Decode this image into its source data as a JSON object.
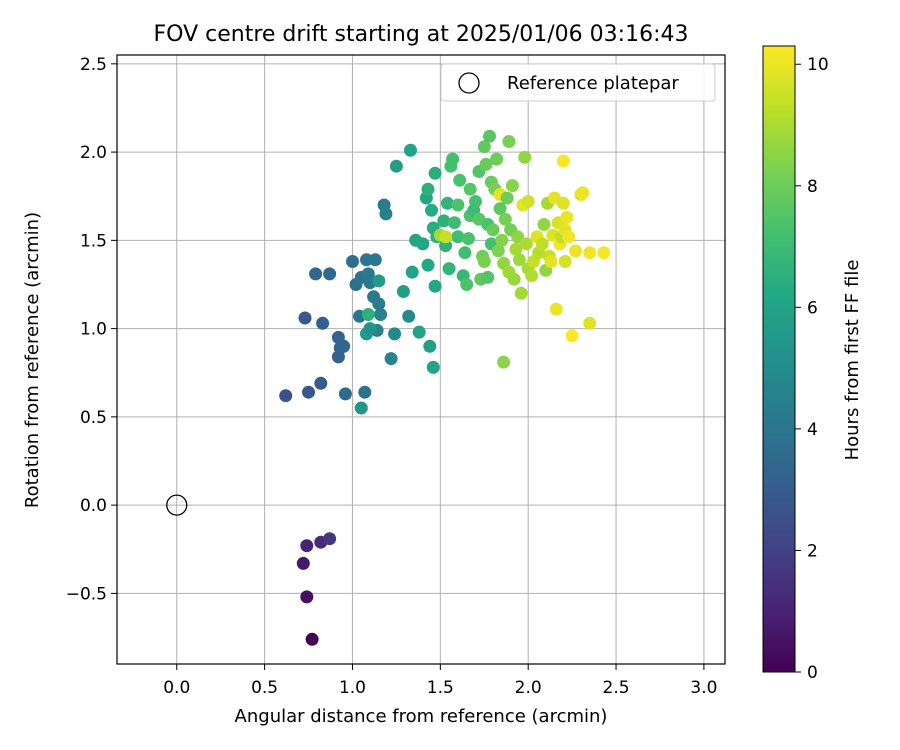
{
  "chart_data": {
    "type": "scatter",
    "title": "FOV centre drift starting at 2025/01/06 03:16:43",
    "xlabel": "Angular distance from reference (arcmin)",
    "ylabel": "Rotation from reference (arcmin)",
    "xlim": [
      -0.34,
      3.12
    ],
    "ylim": [
      -0.9,
      2.55
    ],
    "xticks": [
      0.0,
      0.5,
      1.0,
      1.5,
      2.0,
      2.5,
      3.0
    ],
    "xtick_labels": [
      "0.0",
      "0.5",
      "1.0",
      "1.5",
      "2.0",
      "2.5",
      "3.0"
    ],
    "yticks": [
      -0.5,
      0.0,
      0.5,
      1.0,
      1.5,
      2.0,
      2.5
    ],
    "ytick_labels": [
      "−0.5",
      "0.0",
      "0.5",
      "1.0",
      "1.5",
      "2.0",
      "2.5"
    ],
    "grid": true,
    "legend": {
      "label": "Reference platepar",
      "position": "top-right"
    },
    "reference_point": {
      "x": 0.0,
      "y": 0.0
    },
    "colorbar": {
      "label": "Hours from first FF file",
      "colormap": "viridis",
      "range": [
        0,
        10.3
      ],
      "ticks": [
        0,
        2,
        4,
        6,
        8,
        10
      ],
      "tick_labels": [
        "0",
        "2",
        "4",
        "6",
        "8",
        "10"
      ]
    },
    "points": [
      [
        0.77,
        -0.76,
        0.1
      ],
      [
        0.74,
        -0.52,
        0.4
      ],
      [
        0.72,
        -0.33,
        0.7
      ],
      [
        0.74,
        -0.23,
        1.0
      ],
      [
        0.82,
        -0.21,
        1.3
      ],
      [
        0.87,
        -0.19,
        1.6
      ],
      [
        0.62,
        0.62,
        2.5
      ],
      [
        0.75,
        0.64,
        2.8
      ],
      [
        0.82,
        0.69,
        3.0
      ],
      [
        0.73,
        1.06,
        2.9
      ],
      [
        0.83,
        1.03,
        3.1
      ],
      [
        0.92,
        0.84,
        3.2
      ],
      [
        0.93,
        0.89,
        3.3
      ],
      [
        0.95,
        0.9,
        3.4
      ],
      [
        0.92,
        0.95,
        3.3
      ],
      [
        0.96,
        0.63,
        3.6
      ],
      [
        1.07,
        0.64,
        3.9
      ],
      [
        0.79,
        1.31,
        3.4
      ],
      [
        0.87,
        1.31,
        3.5
      ],
      [
        1.0,
        1.38,
        3.7
      ],
      [
        1.02,
        1.25,
        3.8
      ],
      [
        1.05,
        1.29,
        3.9
      ],
      [
        1.04,
        1.07,
        4.0
      ],
      [
        1.08,
        1.39,
        4.0
      ],
      [
        1.09,
        1.31,
        4.1
      ],
      [
        1.1,
        1.26,
        4.1
      ],
      [
        1.12,
        1.18,
        4.2
      ],
      [
        1.13,
        1.39,
        4.2
      ],
      [
        1.15,
        1.14,
        4.3
      ],
      [
        1.16,
        1.08,
        4.4
      ],
      [
        1.14,
        0.99,
        4.5
      ],
      [
        1.18,
        1.7,
        4.3
      ],
      [
        1.19,
        1.65,
        4.5
      ],
      [
        1.22,
        0.83,
        4.6
      ],
      [
        1.24,
        0.97,
        4.8
      ],
      [
        1.32,
        1.07,
        4.9
      ],
      [
        1.05,
        0.55,
        5.4
      ],
      [
        1.08,
        0.97,
        5.5
      ],
      [
        1.1,
        1.0,
        5.3
      ],
      [
        1.09,
        1.08,
        6.5
      ],
      [
        1.15,
        1.27,
        5.6
      ],
      [
        1.25,
        1.92,
        5.7
      ],
      [
        1.29,
        1.21,
        5.8
      ],
      [
        1.33,
        2.01,
        5.9
      ],
      [
        1.34,
        1.32,
        5.9
      ],
      [
        1.36,
        1.5,
        6.0
      ],
      [
        1.38,
        0.98,
        5.9
      ],
      [
        1.4,
        1.48,
        6.1
      ],
      [
        1.42,
        1.74,
        6.1
      ],
      [
        1.43,
        1.36,
        6.2
      ],
      [
        1.44,
        0.9,
        5.8
      ],
      [
        1.46,
        0.78,
        6.0
      ],
      [
        1.47,
        1.24,
        6.1
      ],
      [
        1.45,
        1.67,
        6.3
      ],
      [
        1.46,
        1.57,
        6.4
      ],
      [
        1.48,
        1.52,
        6.5
      ],
      [
        1.47,
        1.88,
        6.4
      ],
      [
        1.43,
        1.79,
        6.5
      ],
      [
        1.5,
        1.53,
        8.9
      ],
      [
        1.52,
        1.61,
        6.6
      ],
      [
        1.53,
        1.47,
        6.6
      ],
      [
        1.54,
        1.71,
        6.7
      ],
      [
        1.55,
        1.34,
        6.7
      ],
      [
        1.56,
        1.92,
        7.2
      ],
      [
        1.57,
        1.96,
        7.2
      ],
      [
        1.58,
        1.6,
        7.0
      ],
      [
        1.6,
        1.52,
        7.1
      ],
      [
        1.61,
        1.84,
        7.3
      ],
      [
        1.63,
        1.3,
        6.8
      ],
      [
        1.64,
        1.43,
        7.1
      ],
      [
        1.65,
        1.25,
        7.4
      ],
      [
        1.66,
        1.51,
        7.3
      ],
      [
        1.67,
        1.64,
        7.3
      ],
      [
        1.67,
        1.79,
        7.6
      ],
      [
        1.69,
        1.67,
        7.0
      ],
      [
        1.7,
        1.72,
        7.2
      ],
      [
        1.72,
        1.89,
        7.5
      ],
      [
        1.72,
        1.62,
        7.6
      ],
      [
        1.73,
        1.28,
        7.8
      ],
      [
        1.74,
        1.41,
        8.0
      ],
      [
        1.75,
        1.38,
        8.2
      ],
      [
        1.75,
        2.03,
        7.8
      ],
      [
        1.76,
        1.93,
        7.9
      ],
      [
        1.77,
        1.59,
        7.3
      ],
      [
        1.77,
        1.29,
        7.5
      ],
      [
        1.78,
        2.09,
        7.6
      ],
      [
        1.79,
        1.48,
        7.2
      ],
      [
        1.79,
        1.83,
        7.9
      ],
      [
        1.8,
        1.56,
        7.9
      ],
      [
        1.81,
        1.79,
        8.2
      ],
      [
        1.82,
        1.96,
        8.0
      ],
      [
        1.83,
        1.44,
        8.3
      ],
      [
        1.84,
        1.68,
        7.7
      ],
      [
        1.84,
        1.76,
        9.9
      ],
      [
        1.85,
        1.5,
        8.4
      ],
      [
        1.86,
        0.81,
        8.5
      ],
      [
        1.86,
        1.37,
        8.6
      ],
      [
        1.87,
        1.62,
        8.2
      ],
      [
        1.88,
        1.74,
        8.0
      ],
      [
        1.89,
        2.06,
        8.2
      ],
      [
        1.89,
        1.32,
        8.8
      ],
      [
        1.9,
        1.56,
        8.1
      ],
      [
        1.91,
        1.81,
        8.4
      ],
      [
        1.92,
        1.28,
        8.7
      ],
      [
        1.93,
        1.45,
        8.9
      ],
      [
        1.94,
        1.52,
        8.5
      ],
      [
        1.95,
        1.39,
        8.8
      ],
      [
        1.96,
        1.2,
        8.9
      ],
      [
        1.97,
        1.7,
        9.9
      ],
      [
        1.98,
        1.97,
        8.6
      ],
      [
        1.99,
        1.48,
        9.0
      ],
      [
        2.0,
        1.34,
        8.9
      ],
      [
        2.0,
        1.72,
        9.6
      ],
      [
        2.02,
        1.3,
        9.1
      ],
      [
        2.03,
        1.38,
        9.4
      ],
      [
        2.05,
        1.52,
        9.8
      ],
      [
        2.06,
        1.43,
        9.2
      ],
      [
        2.08,
        1.48,
        9.3
      ],
      [
        2.09,
        1.59,
        8.6
      ],
      [
        2.1,
        1.33,
        8.6
      ],
      [
        2.11,
        1.71,
        8.9
      ],
      [
        2.12,
        1.41,
        9.4
      ],
      [
        2.13,
        1.38,
        9.9
      ],
      [
        2.14,
        1.53,
        9.8
      ],
      [
        2.15,
        1.74,
        9.9
      ],
      [
        2.16,
        1.11,
        10.0
      ],
      [
        2.17,
        1.6,
        9.7
      ],
      [
        2.18,
        1.48,
        10.1
      ],
      [
        2.19,
        1.52,
        9.3
      ],
      [
        2.2,
        1.95,
        10.2
      ],
      [
        2.2,
        1.71,
        9.8
      ],
      [
        2.21,
        1.56,
        9.9
      ],
      [
        2.21,
        1.38,
        9.6
      ],
      [
        2.22,
        1.63,
        10.0
      ],
      [
        2.23,
        1.52,
        10.1
      ],
      [
        2.25,
        0.96,
        10.3
      ],
      [
        2.27,
        1.44,
        10.0
      ],
      [
        2.3,
        1.76,
        9.9
      ],
      [
        2.31,
        1.77,
        10.0
      ],
      [
        2.35,
        1.43,
        10.1
      ],
      [
        2.35,
        1.03,
        9.8
      ],
      [
        2.43,
        1.43,
        10.2
      ],
      [
        1.53,
        1.52,
        9.4
      ],
      [
        1.6,
        1.7,
        7.4
      ]
    ]
  }
}
